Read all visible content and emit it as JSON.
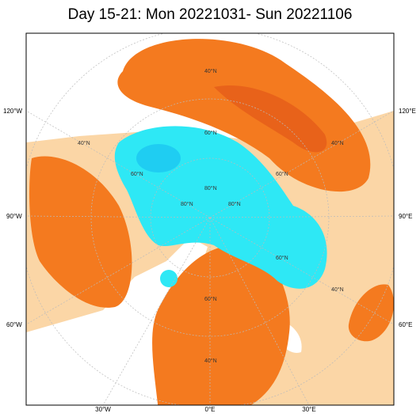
{
  "title": "Day 15-21: Mon 20221031- Sun 20221106",
  "meridian_labels": [
    "120°W",
    "90°W",
    "60°W",
    "120°E",
    "90°E",
    "60°E",
    "30°W",
    "0°E",
    "30°E"
  ],
  "latitude_labels": [
    "40°N",
    "60°N",
    "40°N",
    "60°N",
    "60°N",
    "40°N",
    "60°N",
    "40°N",
    "60°N",
    "40°N",
    "80°N",
    "80°N",
    "80°N"
  ]
}
